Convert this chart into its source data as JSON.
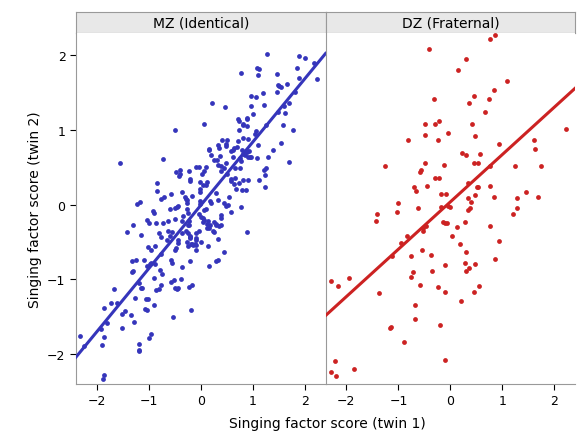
{
  "title_mz": "MZ (Identical)",
  "title_dz": "DZ (Fraternal)",
  "xlabel": "Singing factor score (twin 1)",
  "ylabel": "Singing factor score (twin 2)",
  "xlim": [
    -2.4,
    2.4
  ],
  "ylim": [
    -2.4,
    2.3
  ],
  "xticks": [
    -2,
    -1,
    0,
    1,
    2
  ],
  "yticks": [
    -2,
    -1,
    0,
    1,
    2
  ],
  "mz_color": "#3535bb",
  "dz_color": "#cc2222",
  "mz_n": 300,
  "mz_correlation": 0.85,
  "dz_n": 120,
  "dz_correlation": 0.55,
  "marker_size": 12,
  "line_width": 2.2,
  "background_color": "#ffffff",
  "panel_bg": "#ffffff",
  "strip_bg": "#e8e8e8",
  "border_color": "#999999",
  "seed": 42,
  "tick_fontsize": 9,
  "label_fontsize": 10,
  "title_fontsize": 10
}
